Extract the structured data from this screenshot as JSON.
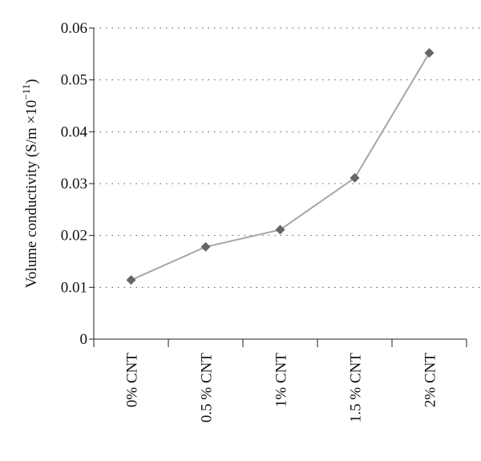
{
  "chart_data": {
    "type": "line",
    "y_label": {
      "text": "Volume conductivity (S/m ×10",
      "superscript": "−11",
      "suffix": ")"
    },
    "categories": [
      "0% CNT",
      "0.5 % CNT",
      "1% CNT",
      "1.5 % CNT",
      "2% CNT"
    ],
    "series": [
      {
        "values": [
          0.0114,
          0.0178,
          0.0211,
          0.0311,
          0.0552
        ],
        "color": "#a6a6a6",
        "marker_color": "#666666"
      }
    ],
    "ylim": [
      0,
      0.06
    ],
    "yticks": [
      0,
      0.01,
      0.02,
      0.03,
      0.04,
      0.05,
      0.06
    ],
    "grid": true
  }
}
